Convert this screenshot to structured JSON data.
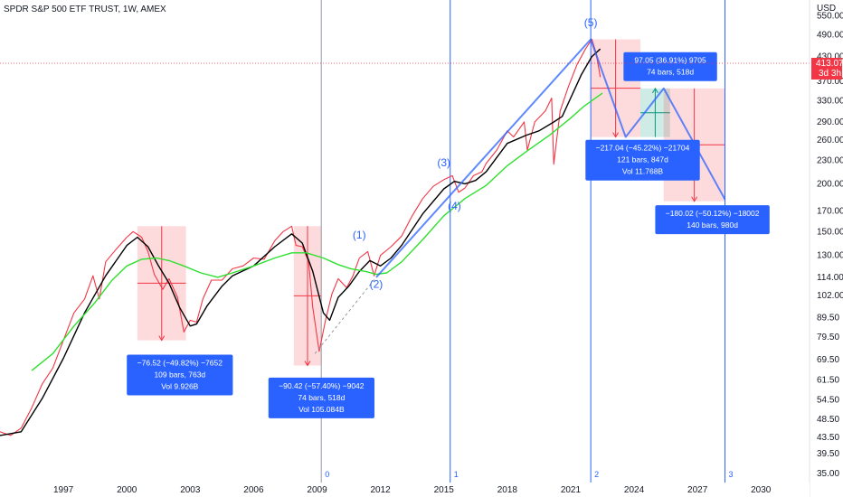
{
  "header": {
    "title": "SPDR S&P 500 ETF TRUST, 1W, AMEX"
  },
  "price_axis": {
    "currency": "USD",
    "current_price": "413.07",
    "countdown": "3d 3h"
  },
  "chart_data": {
    "type": "line",
    "title": "SPDR S&P 500 ETF TRUST, 1W, AMEX",
    "scale": "log",
    "ylim": [
      35,
      560
    ],
    "xlim": [
      1994.0,
      2032.3
    ],
    "y_ticks": [
      550,
      490,
      430,
      370,
      330,
      290,
      260,
      230,
      200,
      170,
      150,
      130,
      114,
      102,
      89.5,
      79.5,
      69.5,
      61.5,
      54.5,
      48.5,
      43.5,
      39.5,
      35
    ],
    "y_tick_labels": [
      "550.00",
      "490.00",
      "430.00",
      "370.00",
      "330.00",
      "290.00",
      "260.00",
      "230.00",
      "200.00",
      "170.00",
      "150.00",
      "130.00",
      "114.00",
      "102.00",
      "89.50",
      "79.50",
      "69.50",
      "61.50",
      "54.50",
      "48.50",
      "43.50",
      "39.50",
      "35.00"
    ],
    "x_ticks": [
      1997,
      2000,
      2003,
      2006,
      2009,
      2012,
      2015,
      2018,
      2021,
      2024,
      2027,
      2030
    ],
    "series": [
      {
        "color": "#f23645",
        "points": [
          [
            1994.0,
            45
          ],
          [
            1994.5,
            44
          ],
          [
            1995.0,
            46
          ],
          [
            1995.5,
            52
          ],
          [
            1996.0,
            60
          ],
          [
            1996.5,
            66
          ],
          [
            1997.0,
            78
          ],
          [
            1997.5,
            92
          ],
          [
            1998.0,
            100
          ],
          [
            1998.4,
            115
          ],
          [
            1998.7,
            100
          ],
          [
            1999.0,
            125
          ],
          [
            1999.5,
            135
          ],
          [
            2000.0,
            145
          ],
          [
            2000.3,
            150
          ],
          [
            2000.7,
            145
          ],
          [
            2001.0,
            133
          ],
          [
            2001.3,
            116
          ],
          [
            2001.7,
            106
          ],
          [
            2002.0,
            113
          ],
          [
            2002.4,
            101
          ],
          [
            2002.7,
            82
          ],
          [
            2003.0,
            88
          ],
          [
            2003.3,
            87
          ],
          [
            2003.6,
            100
          ],
          [
            2004.0,
            112
          ],
          [
            2004.5,
            112
          ],
          [
            2005.0,
            120
          ],
          [
            2005.5,
            122
          ],
          [
            2006.0,
            128
          ],
          [
            2006.5,
            127
          ],
          [
            2007.0,
            142
          ],
          [
            2007.4,
            150
          ],
          [
            2007.8,
            155
          ],
          [
            2008.0,
            138
          ],
          [
            2008.3,
            137
          ],
          [
            2008.6,
            125
          ],
          [
            2008.8,
            95
          ],
          [
            2009.1,
            73
          ],
          [
            2009.4,
            88
          ],
          [
            2009.7,
            103
          ],
          [
            2010.0,
            113
          ],
          [
            2010.4,
            107
          ],
          [
            2010.7,
            115
          ],
          [
            2011.0,
            128
          ],
          [
            2011.4,
            133
          ],
          [
            2011.7,
            115
          ],
          [
            2012.0,
            130
          ],
          [
            2012.5,
            137
          ],
          [
            2013.0,
            146
          ],
          [
            2013.5,
            165
          ],
          [
            2014.0,
            183
          ],
          [
            2014.5,
            197
          ],
          [
            2015.0,
            205
          ],
          [
            2015.4,
            210
          ],
          [
            2015.7,
            190
          ],
          [
            2016.0,
            195
          ],
          [
            2016.4,
            210
          ],
          [
            2016.8,
            215
          ],
          [
            2017.0,
            226
          ],
          [
            2017.5,
            245
          ],
          [
            2018.0,
            275
          ],
          [
            2018.3,
            265
          ],
          [
            2018.8,
            290
          ],
          [
            2018.95,
            245
          ],
          [
            2019.3,
            290
          ],
          [
            2019.8,
            310
          ],
          [
            2020.1,
            335
          ],
          [
            2020.2,
            225
          ],
          [
            2020.5,
            310
          ],
          [
            2020.9,
            360
          ],
          [
            2021.3,
            410
          ],
          [
            2021.7,
            450
          ],
          [
            2022.0,
            477
          ],
          [
            2022.2,
            440
          ],
          [
            2022.4,
            380
          ]
        ]
      },
      {
        "color": "#000000",
        "points": [
          [
            1994.0,
            44
          ],
          [
            1995.0,
            45
          ],
          [
            1996.0,
            55
          ],
          [
            1997.0,
            70
          ],
          [
            1998.0,
            92
          ],
          [
            1999.0,
            115
          ],
          [
            2000.0,
            138
          ],
          [
            2000.5,
            145
          ],
          [
            2001.0,
            137
          ],
          [
            2001.5,
            122
          ],
          [
            2002.0,
            110
          ],
          [
            2002.5,
            95
          ],
          [
            2003.0,
            85
          ],
          [
            2003.3,
            86
          ],
          [
            2003.8,
            96
          ],
          [
            2004.5,
            108
          ],
          [
            2005.0,
            115
          ],
          [
            2006.0,
            122
          ],
          [
            2007.0,
            137
          ],
          [
            2007.8,
            148
          ],
          [
            2008.3,
            140
          ],
          [
            2008.8,
            118
          ],
          [
            2009.3,
            92
          ],
          [
            2009.6,
            88
          ],
          [
            2010.0,
            101
          ],
          [
            2010.5,
            108
          ],
          [
            2011.0,
            118
          ],
          [
            2011.5,
            126
          ],
          [
            2012.0,
            122
          ],
          [
            2012.5,
            128
          ],
          [
            2013.0,
            138
          ],
          [
            2014.0,
            167
          ],
          [
            2015.0,
            194
          ],
          [
            2015.5,
            203
          ],
          [
            2016.0,
            200
          ],
          [
            2016.5,
            204
          ],
          [
            2017.0,
            215
          ],
          [
            2018.0,
            255
          ],
          [
            2018.9,
            268
          ],
          [
            2019.5,
            275
          ],
          [
            2020.2,
            290
          ],
          [
            2020.6,
            300
          ],
          [
            2021.0,
            335
          ],
          [
            2021.5,
            385
          ],
          [
            2022.0,
            430
          ],
          [
            2022.4,
            450
          ]
        ]
      },
      {
        "color": "#2ee02e",
        "points": [
          [
            1995.5,
            65
          ],
          [
            1996.5,
            72
          ],
          [
            1997.5,
            85
          ],
          [
            1998.5,
            98
          ],
          [
            1999.3,
            112
          ],
          [
            2000.0,
            122
          ],
          [
            2000.7,
            127
          ],
          [
            2001.4,
            128
          ],
          [
            2002.0,
            126
          ],
          [
            2002.7,
            122
          ],
          [
            2003.5,
            117
          ],
          [
            2004.3,
            114
          ],
          [
            2005.0,
            117
          ],
          [
            2006.0,
            122
          ],
          [
            2007.0,
            128
          ],
          [
            2007.8,
            132
          ],
          [
            2008.5,
            132
          ],
          [
            2009.3,
            128
          ],
          [
            2010.0,
            123
          ],
          [
            2010.6,
            120
          ],
          [
            2011.3,
            118
          ],
          [
            2011.8,
            116
          ],
          [
            2012.3,
            117
          ],
          [
            2013.0,
            125
          ],
          [
            2014.0,
            143
          ],
          [
            2015.0,
            165
          ],
          [
            2016.0,
            183
          ],
          [
            2017.0,
            198
          ],
          [
            2018.0,
            223
          ],
          [
            2019.0,
            245
          ],
          [
            2020.0,
            268
          ],
          [
            2021.0,
            297
          ],
          [
            2021.6,
            318
          ],
          [
            2022.5,
            345
          ]
        ]
      }
    ],
    "elliott_waves": {
      "path": [
        [
          2011.8,
          114
        ],
        [
          2021.95,
          477
        ],
        [
          2023.6,
          265
        ],
        [
          2025.4,
          355
        ],
        [
          2028.3,
          182
        ]
      ],
      "labels": [
        {
          "text": "(1)",
          "x": 2011.0,
          "y": 144
        },
        {
          "text": "(2)",
          "x": 2011.8,
          "y": 107
        },
        {
          "text": "(3)",
          "x": 2015.0,
          "y": 222
        },
        {
          "text": "(4)",
          "x": 2015.5,
          "y": 171
        },
        {
          "text": "(5)",
          "x": 2021.95,
          "y": 516
        }
      ]
    },
    "trendline_dashed": [
      [
        2008.9,
        72
      ],
      [
        2011.8,
        114
      ]
    ],
    "cycle_lines": [
      {
        "label": "0",
        "x": 2009.2
      },
      {
        "label": "1",
        "x": 2015.3
      },
      {
        "label": "2",
        "x": 2021.95
      },
      {
        "label": "3",
        "x": 2028.3
      }
    ],
    "measurements": [
      {
        "x_start": 2000.5,
        "x_end": 2002.8,
        "y_top": 155,
        "y_bottom": 78,
        "color": "red",
        "lines": [
          "−76.52 (−49.82%) −7652",
          "109 bars, 763d",
          "Vol 9.926B"
        ],
        "label_x": 2000.0,
        "label_y": 70
      },
      {
        "x_start": 2007.9,
        "x_end": 2009.2,
        "y_top": 155,
        "y_bottom": 67,
        "color": "red",
        "lines": [
          "−90.42 (−57.40%) −9042",
          "74 bars, 518d",
          "Vol 105.084B"
        ],
        "label_x": 2006.7,
        "label_y": 61
      },
      {
        "x_start": 2021.95,
        "x_end": 2024.3,
        "y_top": 477,
        "y_bottom": 265,
        "color": "red",
        "lines": [
          "−217.04 (−45.22%) −21704",
          "121 bars, 847d",
          "Vol 11.768B"
        ],
        "label_x": 2021.7,
        "label_y": 255
      },
      {
        "x_start": 2024.3,
        "x_end": 2025.7,
        "y_top": 355,
        "y_bottom": 265,
        "color": "green",
        "lines": [
          "97.05 (36.91%) 9705",
          "74 bars, 518d"
        ],
        "label_x": 2023.5,
        "label_y": 432
      },
      {
        "x_start": 2025.4,
        "x_end": 2028.3,
        "y_top": 355,
        "y_bottom": 180,
        "color": "red",
        "lines": [
          "−180.02 (−50.12%) −18002",
          "140 bars, 980d"
        ],
        "label_x": 2025.0,
        "label_y": 172
      }
    ],
    "current_price_line": 413.07,
    "xlabel": "",
    "ylabel": "",
    "grid": false
  }
}
